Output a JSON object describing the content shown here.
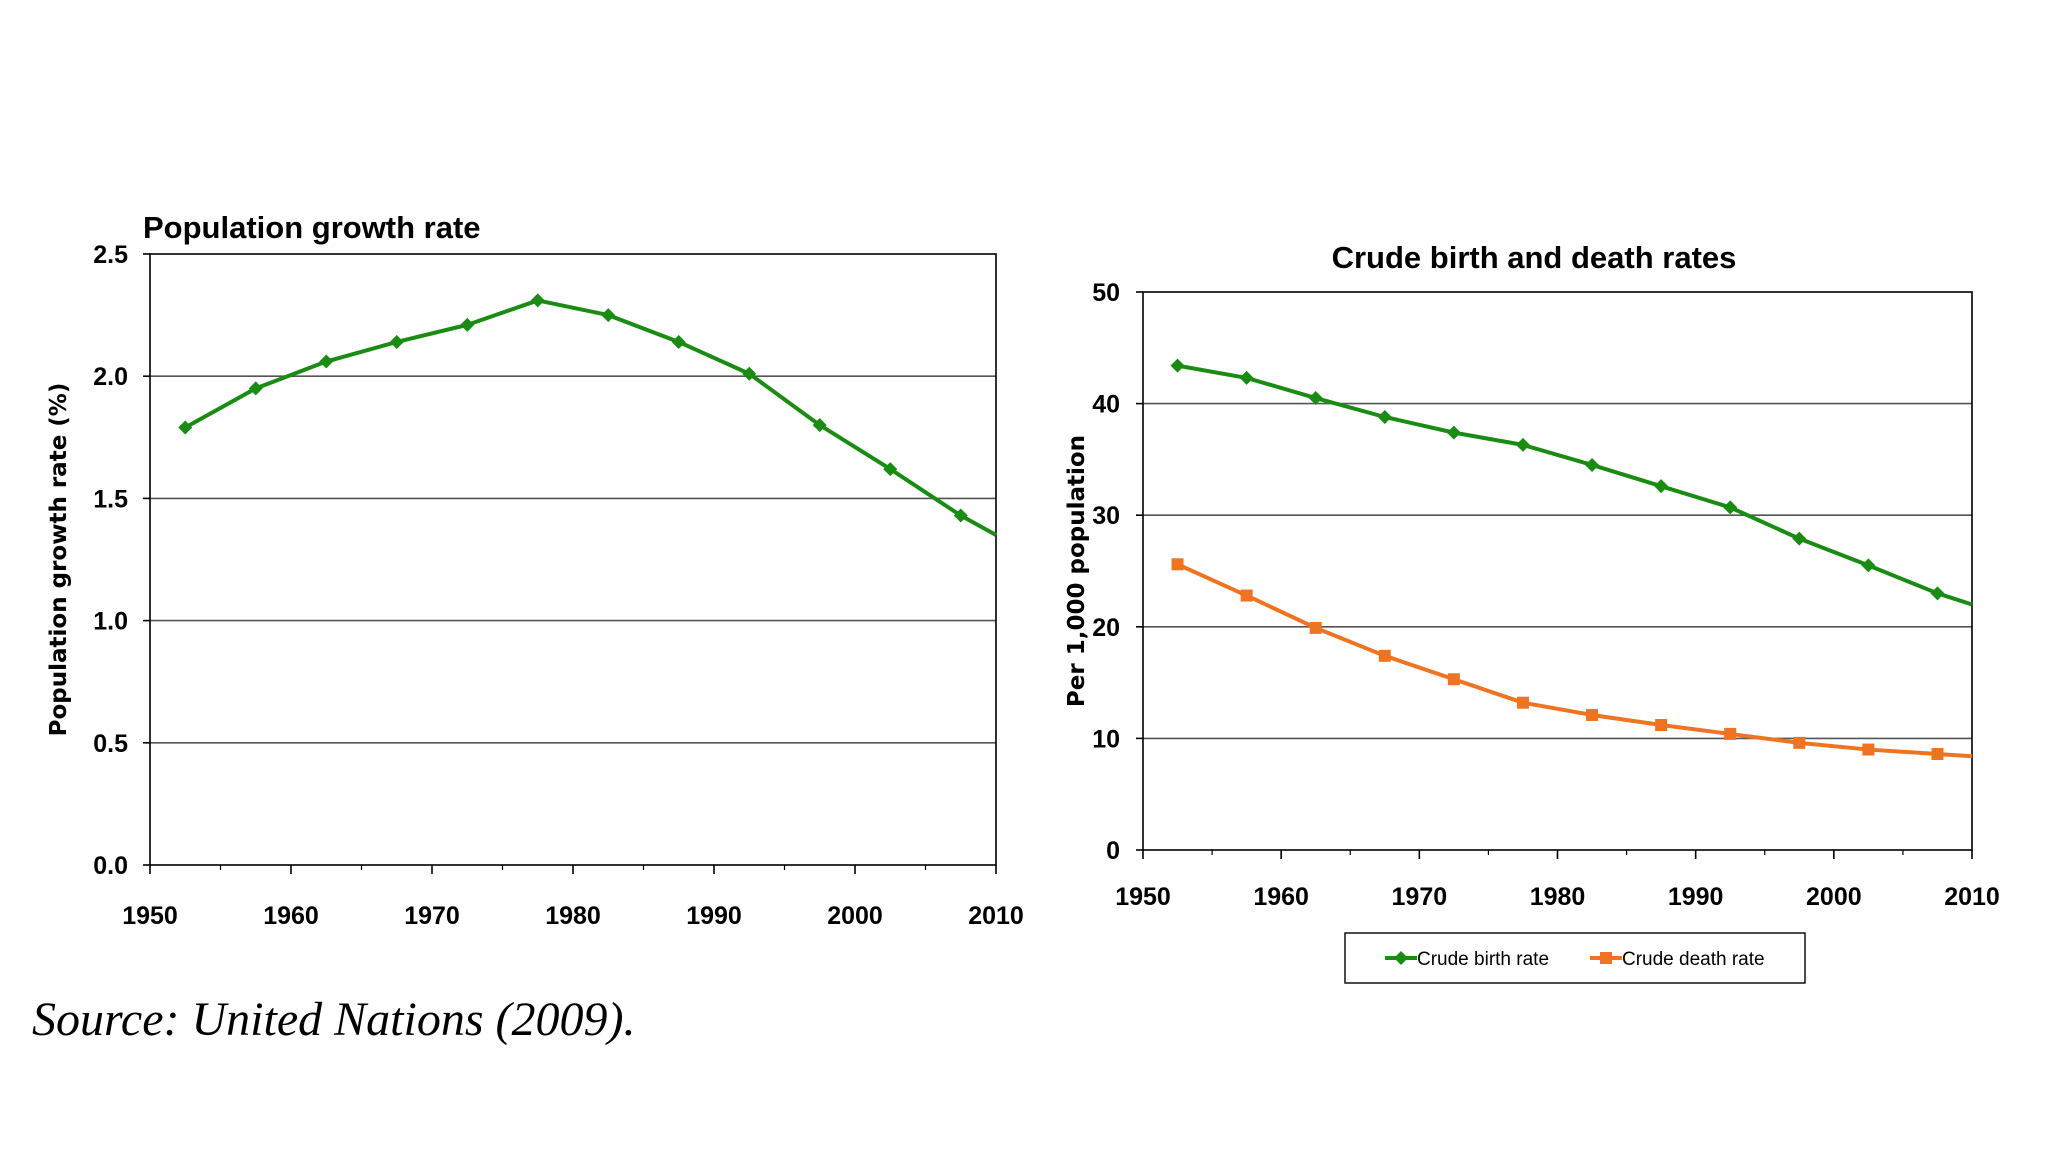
{
  "source": "Source: United Nations (2009).",
  "colors": {
    "green": "#1a8c14",
    "orange": "#ee7422",
    "grid": "#555555"
  },
  "chart_data": [
    {
      "type": "line",
      "title": "Population growth rate",
      "xlabel": "",
      "ylabel": "Population growth rate (%)",
      "xlim": [
        1950,
        2010
      ],
      "ylim": [
        0,
        2.5
      ],
      "x_ticks": [
        "1950",
        "1960",
        "1970",
        "1980",
        "1990",
        "2000",
        "2010"
      ],
      "y_ticks": [
        "0.0",
        "0.5",
        "1.0",
        "1.5",
        "2.0",
        "2.5"
      ],
      "grid": true,
      "series": [
        {
          "name": "Population growth rate",
          "marker": "diamond",
          "color": "#1a8c14",
          "x": [
            1952.5,
            1957.5,
            1962.5,
            1967.5,
            1972.5,
            1977.5,
            1982.5,
            1987.5,
            1992.5,
            1997.5,
            2002.5,
            2007.5,
            2010
          ],
          "values": [
            1.79,
            1.95,
            2.06,
            2.14,
            2.21,
            2.31,
            2.25,
            2.14,
            2.01,
            1.8,
            1.62,
            1.43,
            1.35
          ]
        }
      ]
    },
    {
      "type": "line",
      "title": "Crude birth and death rates",
      "xlabel": "",
      "ylabel": "Per 1,000 population",
      "xlim": [
        1950,
        2010
      ],
      "ylim": [
        0,
        50
      ],
      "x_ticks": [
        "1950",
        "1960",
        "1970",
        "1980",
        "1990",
        "2000",
        "2010"
      ],
      "y_ticks": [
        "0",
        "10",
        "20",
        "30",
        "40",
        "50"
      ],
      "grid": true,
      "legend": "bottom",
      "series": [
        {
          "name": "Crude birth rate",
          "marker": "diamond",
          "color": "#1a8c14",
          "x": [
            1952.5,
            1957.5,
            1962.5,
            1967.5,
            1972.5,
            1977.5,
            1982.5,
            1987.5,
            1992.5,
            1997.5,
            2002.5,
            2007.5,
            2010
          ],
          "values": [
            43.4,
            42.3,
            40.5,
            38.8,
            37.4,
            36.3,
            34.5,
            32.6,
            30.7,
            27.9,
            25.5,
            23.0,
            22.0
          ]
        },
        {
          "name": "Crude death rate",
          "marker": "square",
          "color": "#ee7422",
          "x": [
            1952.5,
            1957.5,
            1962.5,
            1967.5,
            1972.5,
            1977.5,
            1982.5,
            1987.5,
            1992.5,
            1997.5,
            2002.5,
            2007.5,
            2010
          ],
          "values": [
            25.6,
            22.8,
            19.9,
            17.4,
            15.3,
            13.2,
            12.1,
            11.2,
            10.4,
            9.6,
            9.0,
            8.6,
            8.4
          ]
        }
      ]
    }
  ]
}
